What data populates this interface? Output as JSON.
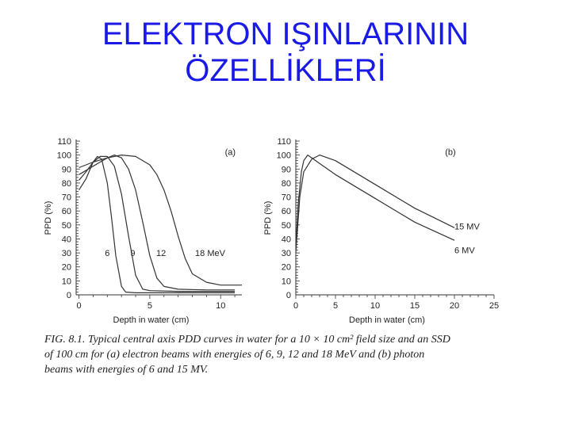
{
  "slide": {
    "title_line1": "ELEKTRON IŞINLARININ",
    "title_line2": "ÖZELLİKLERİ",
    "caption_lines": [
      "FIG. 8.1.  Typical central axis PDD curves in water for a 10 × 10 cm² field size and an SSD",
      "of 100 cm for (a) electron beams with energies of 6, 9, 12 and 18 MeV and (b) photon",
      "beams with energies of 6 and 15 MV."
    ]
  },
  "chart_data": [
    {
      "type": "line",
      "panel_label": "(a)",
      "xlabel": "Depth in water (cm)",
      "ylabel": "PPD (%)",
      "xlim": [
        -0.2,
        11.5
      ],
      "ylim": [
        0,
        110
      ],
      "xticks": [
        0,
        5,
        10
      ],
      "yticks": [
        0,
        10,
        20,
        30,
        40,
        50,
        60,
        70,
        80,
        90,
        100,
        110
      ],
      "series": [
        {
          "name": "6",
          "x": [
            0,
            0.5,
            1.0,
            1.3,
            1.6,
            2.0,
            2.3,
            2.6,
            3.0,
            3.3,
            4,
            6,
            11
          ],
          "y": [
            75,
            83,
            95,
            99,
            97,
            80,
            55,
            28,
            6,
            2,
            1.5,
            1.5,
            1.5
          ]
        },
        {
          "name": "9",
          "x": [
            0,
            0.5,
            1.0,
            1.5,
            2.0,
            2.5,
            3.0,
            3.5,
            4.0,
            4.5,
            5,
            7,
            11
          ],
          "y": [
            82,
            88,
            95,
            99,
            99,
            92,
            72,
            42,
            14,
            4,
            3,
            2.5,
            2.5
          ]
        },
        {
          "name": "12",
          "x": [
            0,
            1,
            2,
            2.5,
            3,
            3.5,
            4,
            4.5,
            5,
            5.5,
            6,
            7,
            9,
            11
          ],
          "y": [
            86,
            92,
            98,
            100,
            98,
            90,
            75,
            52,
            28,
            12,
            6,
            4,
            3.5,
            3.5
          ]
        },
        {
          "name": "18 MeV",
          "x": [
            0,
            1,
            2,
            3,
            4,
            5,
            5.5,
            6,
            6.5,
            7,
            7.5,
            8,
            9,
            10,
            11.5
          ],
          "y": [
            91,
            95,
            98,
            100,
            99,
            93,
            86,
            75,
            60,
            42,
            26,
            15,
            9,
            7,
            7
          ]
        }
      ]
    },
    {
      "type": "line",
      "panel_label": "(b)",
      "xlabel": "Depth in water (cm)",
      "ylabel": "PPD (%)",
      "xlim": [
        0,
        25
      ],
      "ylim": [
        0,
        110
      ],
      "xticks": [
        0,
        5,
        10,
        15,
        20,
        25
      ],
      "yticks": [
        0,
        10,
        20,
        30,
        40,
        50,
        60,
        70,
        80,
        90,
        100,
        110
      ],
      "series": [
        {
          "name": "15 MV",
          "x": [
            0,
            0.5,
            1,
            2,
            3,
            5,
            10,
            15,
            20
          ],
          "y": [
            30,
            70,
            88,
            97,
            100,
            96,
            79,
            62,
            48
          ]
        },
        {
          "name": "6 MV",
          "x": [
            0,
            0.3,
            0.7,
            1,
            1.5,
            3,
            5,
            10,
            15,
            20
          ],
          "y": [
            35,
            65,
            88,
            96,
            100,
            94,
            86,
            69,
            52,
            39
          ]
        }
      ]
    }
  ]
}
